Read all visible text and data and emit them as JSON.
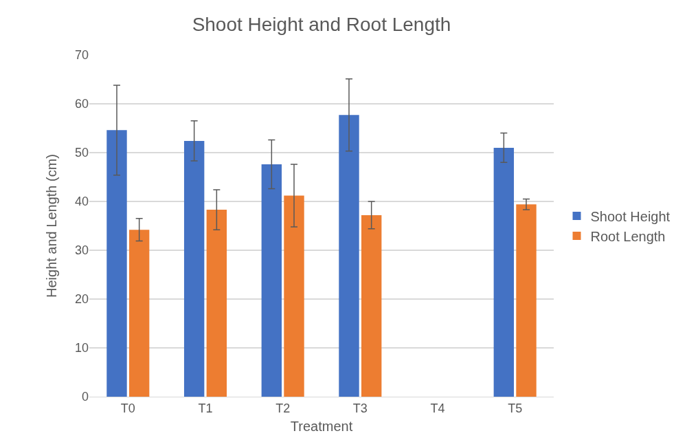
{
  "chart_data": {
    "type": "bar",
    "title": "Shoot Height and Root Length",
    "xlabel": "Treatment",
    "ylabel": "Height and Length (cm)",
    "categories": [
      "T0",
      "T1",
      "T2",
      "T3",
      "T4",
      "T5"
    ],
    "series": [
      {
        "name": "Shoot Height",
        "color": "#4472c4",
        "values": [
          54.6,
          52.4,
          47.6,
          57.7,
          null,
          51.0
        ],
        "errors": [
          9.2,
          4.1,
          5.0,
          7.4,
          null,
          3.0
        ]
      },
      {
        "name": "Root Length",
        "color": "#ed7d31",
        "values": [
          34.2,
          38.3,
          41.2,
          37.2,
          null,
          39.4
        ],
        "errors": [
          2.3,
          4.1,
          6.4,
          2.8,
          null,
          1.1
        ]
      }
    ],
    "ylim": [
      0,
      70
    ],
    "yticks": [
      0,
      10,
      20,
      30,
      40,
      50,
      60,
      70
    ],
    "grid": "y",
    "legend": "right"
  }
}
